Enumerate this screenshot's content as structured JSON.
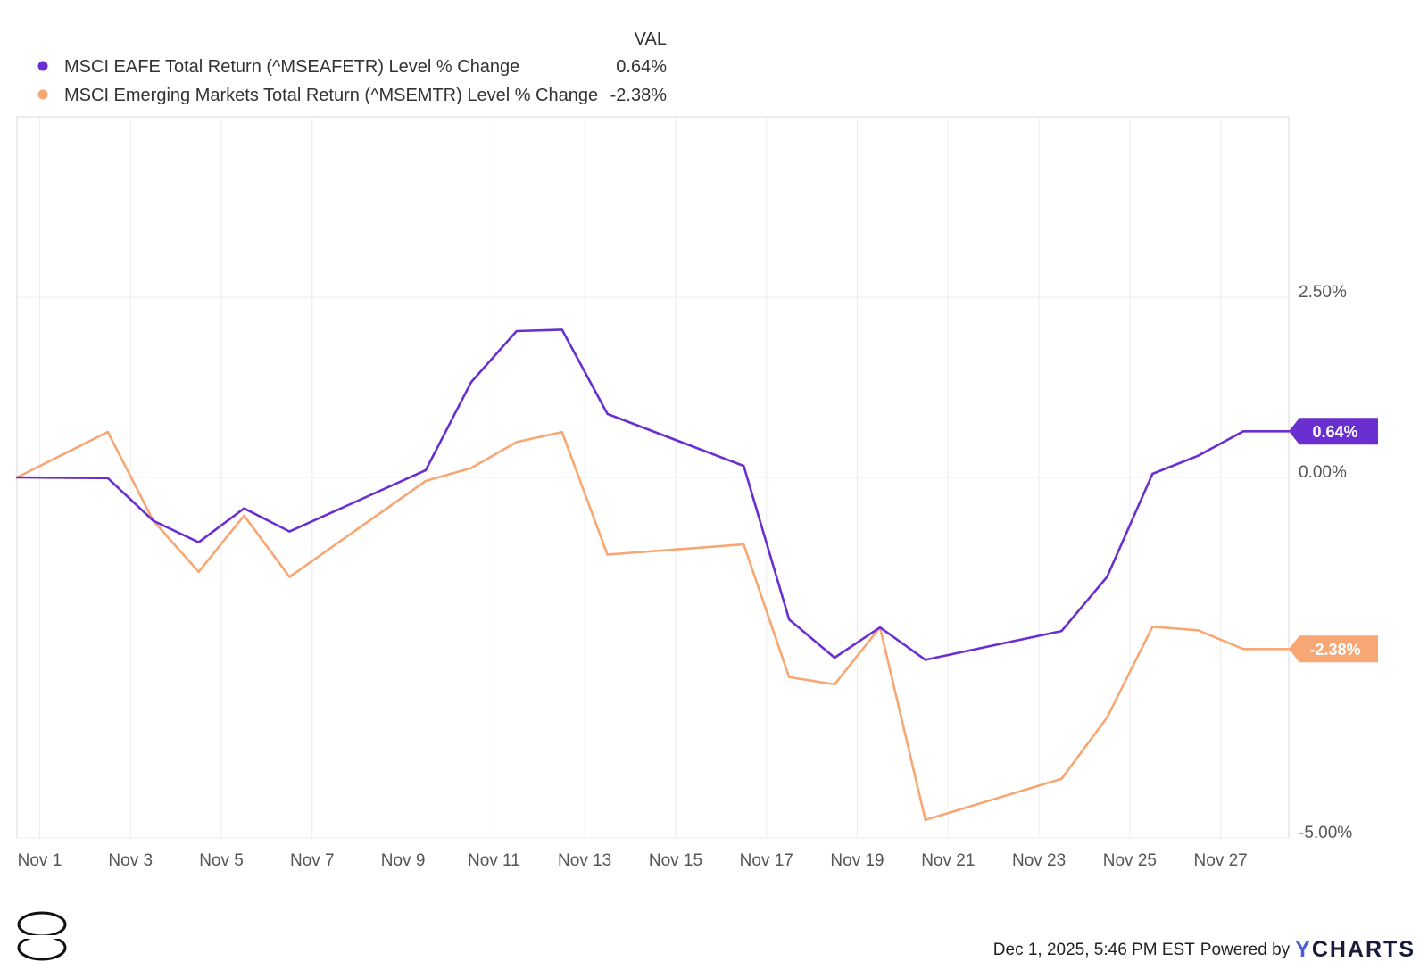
{
  "legend": {
    "header": "VAL",
    "items": [
      {
        "name": "MSCI EAFE Total Return (^MSEAFETR) Level % Change",
        "value": "0.64%",
        "color": "#6a2fd1"
      },
      {
        "name": "MSCI Emerging Markets Total Return (^MSEMTR) Level % Change",
        "value": "-2.38%",
        "color": "#f7a774"
      }
    ]
  },
  "footer": {
    "timestamp": "Dec 1, 2025, 5:46 PM EST",
    "powered_by": "Powered by",
    "brand_y": "Y",
    "brand_rest": "CHARTS"
  },
  "chart_data": {
    "type": "line",
    "x": [
      0,
      2,
      3,
      4,
      5,
      6,
      9,
      10,
      11,
      12,
      13,
      16,
      17,
      18,
      19,
      20,
      23,
      24,
      25,
      26,
      27,
      28
    ],
    "x_tick_values": [
      0.5,
      2.5,
      4.5,
      6.5,
      8.5,
      10.5,
      12.5,
      14.5,
      16.5,
      18.5,
      20.5,
      22.5,
      24.5,
      26.5
    ],
    "x_tick_labels": [
      "Nov 1",
      "Nov 3",
      "Nov 5",
      "Nov 7",
      "Nov 9",
      "Nov 11",
      "Nov 13",
      "Nov 15",
      "Nov 17",
      "Nov 19",
      "Nov 21",
      "Nov 23",
      "Nov 25",
      "Nov 27"
    ],
    "y_ticks": [
      2.5,
      0,
      -5
    ],
    "y_tick_labels": [
      "2.50%",
      "0.00%",
      "-5.00%"
    ],
    "ylim": [
      -5,
      5
    ],
    "grid": true,
    "legend_position": "top-left",
    "series": [
      {
        "name": "MSCI EAFE Total Return (^MSEAFETR) Level % Change",
        "color": "#6a2fd1",
        "end_label": "0.64%",
        "values": [
          0.0,
          -0.01,
          -0.6,
          -0.9,
          -0.43,
          -0.75,
          0.1,
          1.32,
          2.03,
          2.05,
          0.88,
          0.16,
          -1.97,
          -2.5,
          -2.08,
          -2.53,
          -2.13,
          -1.38,
          0.05,
          0.3,
          0.64,
          0.64
        ]
      },
      {
        "name": "MSCI Emerging Markets Total Return (^MSEMTR) Level % Change",
        "color": "#f7a774",
        "end_label": "-2.38%",
        "values": [
          0.0,
          0.63,
          -0.6,
          -1.31,
          -0.53,
          -1.38,
          -0.05,
          0.13,
          0.49,
          0.63,
          -1.07,
          -0.93,
          -2.77,
          -2.87,
          -2.08,
          -4.75,
          -4.18,
          -3.33,
          -2.07,
          -2.12,
          -2.38,
          -2.38
        ]
      }
    ]
  }
}
